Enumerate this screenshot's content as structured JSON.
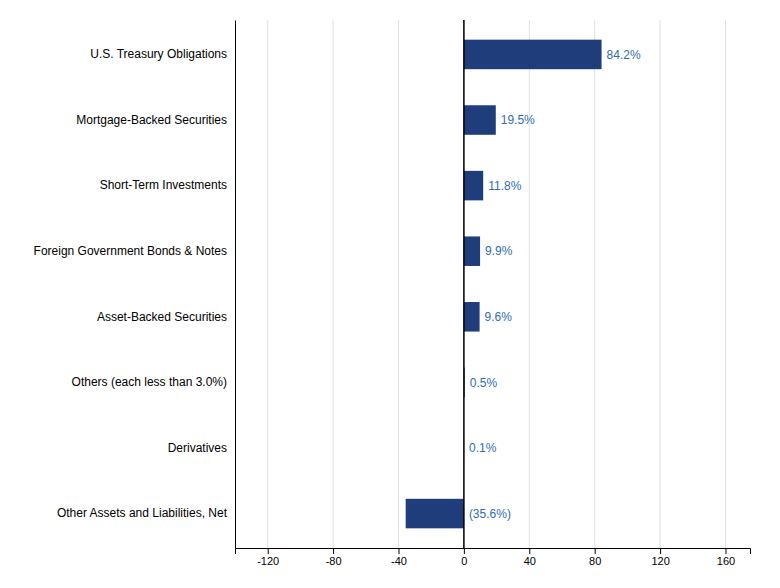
{
  "chart_data": {
    "type": "bar",
    "orientation": "horizontal",
    "categories": [
      "U.S. Treasury Obligations",
      "Mortgage-Backed Securities",
      "Short-Term Investments",
      "Foreign Government Bonds & Notes",
      "Asset-Backed Securities",
      "Others (each less than 3.0%)",
      "Derivatives",
      "Other Assets and Liabilities, Net"
    ],
    "values": [
      84.2,
      19.5,
      11.8,
      9.9,
      9.6,
      0.5,
      0.1,
      -35.6
    ],
    "value_labels": [
      "84.2%",
      "19.5%",
      "11.8%",
      "9.9%",
      "9.6%",
      "0.5%",
      "0.1%",
      "(35.6%)"
    ],
    "data_labels": true,
    "color": "#1F3D7A",
    "xlim": [
      -140,
      175
    ],
    "xticks": [
      -120,
      -80,
      -40,
      0,
      40,
      80,
      120,
      160
    ],
    "grid": true
  }
}
